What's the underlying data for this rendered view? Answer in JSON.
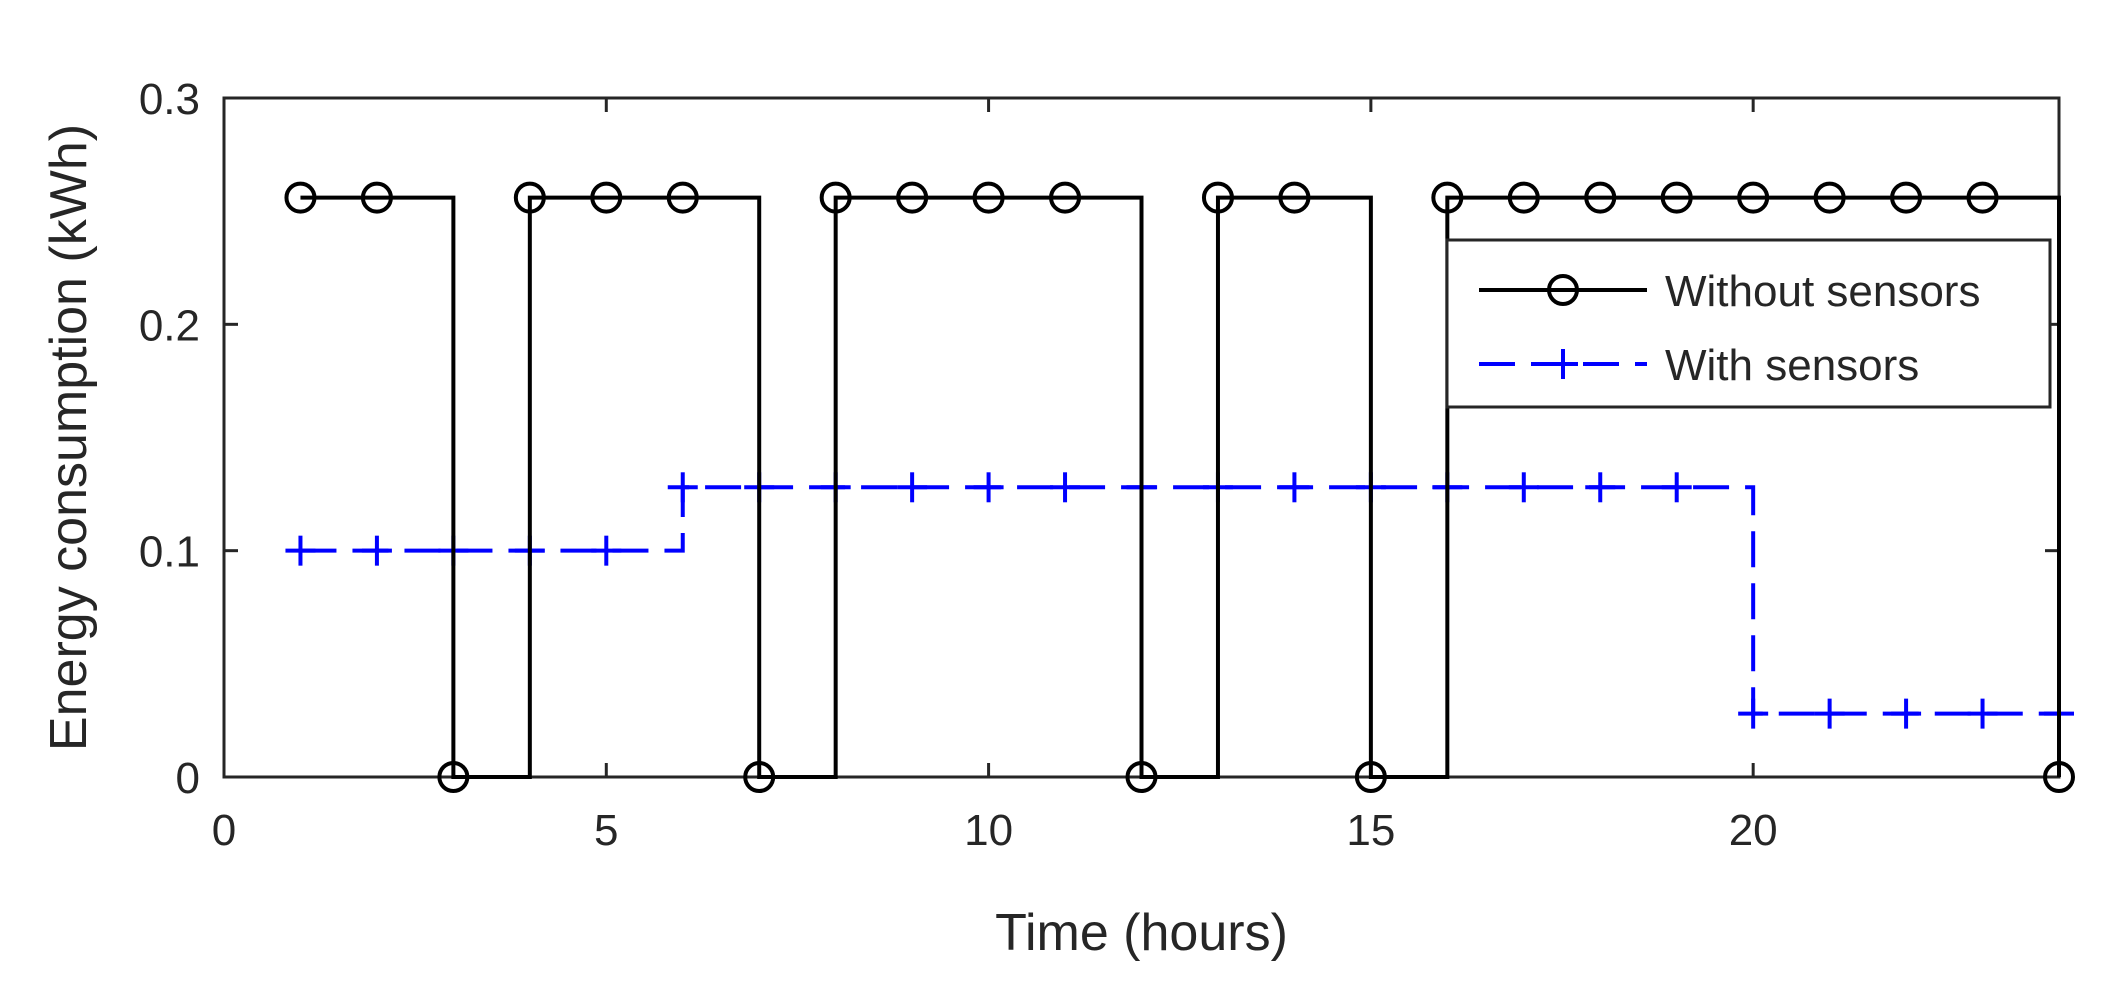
{
  "chart_data": {
    "type": "line",
    "title": "",
    "xlabel": "Time (hours)",
    "ylabel": "Energy consumption (kWh)",
    "xlim": [
      0,
      24
    ],
    "ylim": [
      0,
      0.3
    ],
    "xticks": [
      0,
      5,
      10,
      15,
      20
    ],
    "yticks": [
      0,
      0.1,
      0.2,
      0.3
    ],
    "xtick_labels": [
      "0",
      "5",
      "10",
      "15",
      "20"
    ],
    "ytick_labels": [
      "0",
      "0.1",
      "0.2",
      "0.3"
    ],
    "grid": false,
    "legend_position": "top-right",
    "step": "post",
    "series": [
      {
        "name": "Without sensors",
        "color": "#000000",
        "line_style": "solid",
        "marker": "circle",
        "x": [
          1,
          2,
          3,
          4,
          5,
          6,
          7,
          8,
          9,
          10,
          11,
          12,
          13,
          14,
          15,
          16,
          17,
          18,
          19,
          20,
          21,
          22,
          23,
          24
        ],
        "y": [
          0.256,
          0.256,
          0,
          0.256,
          0.256,
          0.256,
          0,
          0.256,
          0.256,
          0.256,
          0.256,
          0,
          0.256,
          0.256,
          0,
          0.256,
          0.256,
          0.256,
          0.256,
          0.256,
          0.256,
          0.256,
          0.256,
          0
        ]
      },
      {
        "name": "With sensors",
        "color": "#0000FF",
        "line_style": "dashed",
        "marker": "plus",
        "x": [
          1,
          2,
          3,
          4,
          5,
          6,
          7,
          8,
          9,
          10,
          11,
          12,
          13,
          14,
          15,
          16,
          17,
          18,
          19,
          20,
          21,
          22,
          23,
          24
        ],
        "y": [
          0.1,
          0.1,
          0.1,
          0.1,
          0.1,
          0.128,
          0.128,
          0.128,
          0.128,
          0.128,
          0.128,
          0.128,
          0.128,
          0.128,
          0.128,
          0.128,
          0.128,
          0.128,
          0.128,
          0.028,
          0.028,
          0.028,
          0.028,
          0.028
        ]
      }
    ]
  }
}
